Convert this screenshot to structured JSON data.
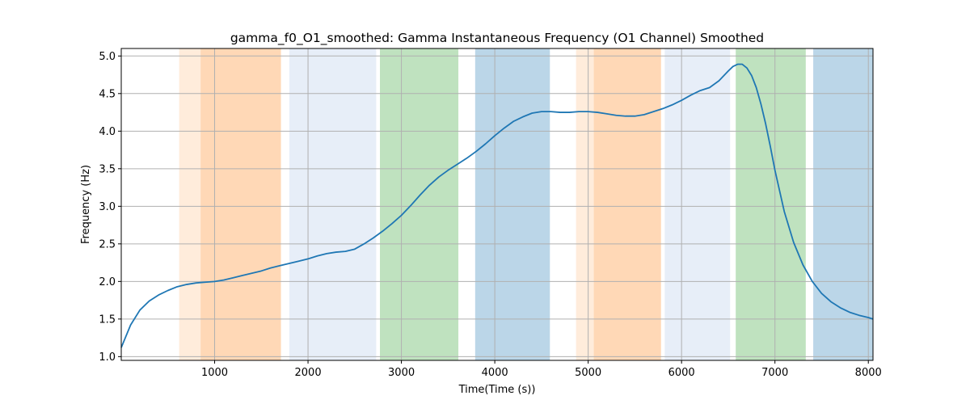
{
  "chart_data": {
    "type": "line",
    "title": "gamma_f0_O1_smoothed: Gamma Instantaneous Frequency (O1 Channel) Smoothed",
    "xlabel": "Time(Time (s))",
    "ylabel": "Frequency (Hz)",
    "xlim": [
      0,
      8050
    ],
    "ylim": [
      0.95,
      5.1
    ],
    "x_ticks": [
      1000,
      2000,
      3000,
      4000,
      5000,
      6000,
      7000,
      8000
    ],
    "y_ticks": [
      1.0,
      1.5,
      2.0,
      2.5,
      3.0,
      3.5,
      4.0,
      4.5,
      5.0
    ],
    "grid": true,
    "line_color": "#1f77b4",
    "bands": [
      {
        "start": 620,
        "end": 850,
        "color": "#ff7f0e",
        "opacity": 0.15
      },
      {
        "start": 850,
        "end": 1710,
        "color": "#ff7f0e",
        "opacity": 0.3
      },
      {
        "start": 1800,
        "end": 2730,
        "color": "#aec7e8",
        "opacity": 0.3
      },
      {
        "start": 2770,
        "end": 3610,
        "color": "#2ca02c",
        "opacity": 0.3
      },
      {
        "start": 3790,
        "end": 4590,
        "color": "#1f77b4",
        "opacity": 0.3
      },
      {
        "start": 4870,
        "end": 5060,
        "color": "#ff7f0e",
        "opacity": 0.15
      },
      {
        "start": 5060,
        "end": 5780,
        "color": "#ff7f0e",
        "opacity": 0.3
      },
      {
        "start": 5820,
        "end": 6520,
        "color": "#aec7e8",
        "opacity": 0.3
      },
      {
        "start": 6580,
        "end": 7330,
        "color": "#2ca02c",
        "opacity": 0.3
      },
      {
        "start": 7410,
        "end": 8050,
        "color": "#1f77b4",
        "opacity": 0.3
      }
    ],
    "series": [
      {
        "x": [
          0,
          100,
          200,
          300,
          400,
          500,
          600,
          700,
          800,
          900,
          1000,
          1100,
          1200,
          1300,
          1400,
          1500,
          1600,
          1700,
          1800,
          1900,
          2000,
          2100,
          2200,
          2300,
          2400,
          2500,
          2600,
          2700,
          2800,
          2900,
          3000,
          3100,
          3200,
          3300,
          3400,
          3500,
          3600,
          3700,
          3800,
          3900,
          4000,
          4100,
          4200,
          4300,
          4400,
          4500,
          4600,
          4700,
          4800,
          4900,
          5000,
          5100,
          5200,
          5300,
          5400,
          5500,
          5600,
          5700,
          5800,
          5900,
          6000,
          6100,
          6200,
          6300,
          6400,
          6500,
          6550,
          6600,
          6650,
          6700,
          6750,
          6800,
          6850,
          6900,
          6950,
          7000,
          7100,
          7200,
          7300,
          7400,
          7500,
          7600,
          7700,
          7800,
          7900,
          8000,
          8050
        ],
        "y": [
          1.12,
          1.42,
          1.62,
          1.74,
          1.82,
          1.88,
          1.93,
          1.96,
          1.98,
          1.99,
          2.0,
          2.02,
          2.05,
          2.08,
          2.11,
          2.14,
          2.18,
          2.21,
          2.24,
          2.27,
          2.3,
          2.34,
          2.37,
          2.39,
          2.4,
          2.43,
          2.5,
          2.58,
          2.67,
          2.77,
          2.88,
          3.01,
          3.15,
          3.28,
          3.39,
          3.48,
          3.56,
          3.64,
          3.73,
          3.83,
          3.94,
          4.04,
          4.13,
          4.19,
          4.24,
          4.26,
          4.26,
          4.25,
          4.25,
          4.26,
          4.26,
          4.25,
          4.23,
          4.21,
          4.2,
          4.2,
          4.22,
          4.26,
          4.3,
          4.35,
          4.41,
          4.48,
          4.54,
          4.58,
          4.67,
          4.8,
          4.86,
          4.89,
          4.89,
          4.84,
          4.74,
          4.58,
          4.36,
          4.1,
          3.8,
          3.48,
          2.93,
          2.52,
          2.22,
          2.0,
          1.84,
          1.73,
          1.65,
          1.59,
          1.55,
          1.52,
          1.5
        ]
      }
    ]
  }
}
